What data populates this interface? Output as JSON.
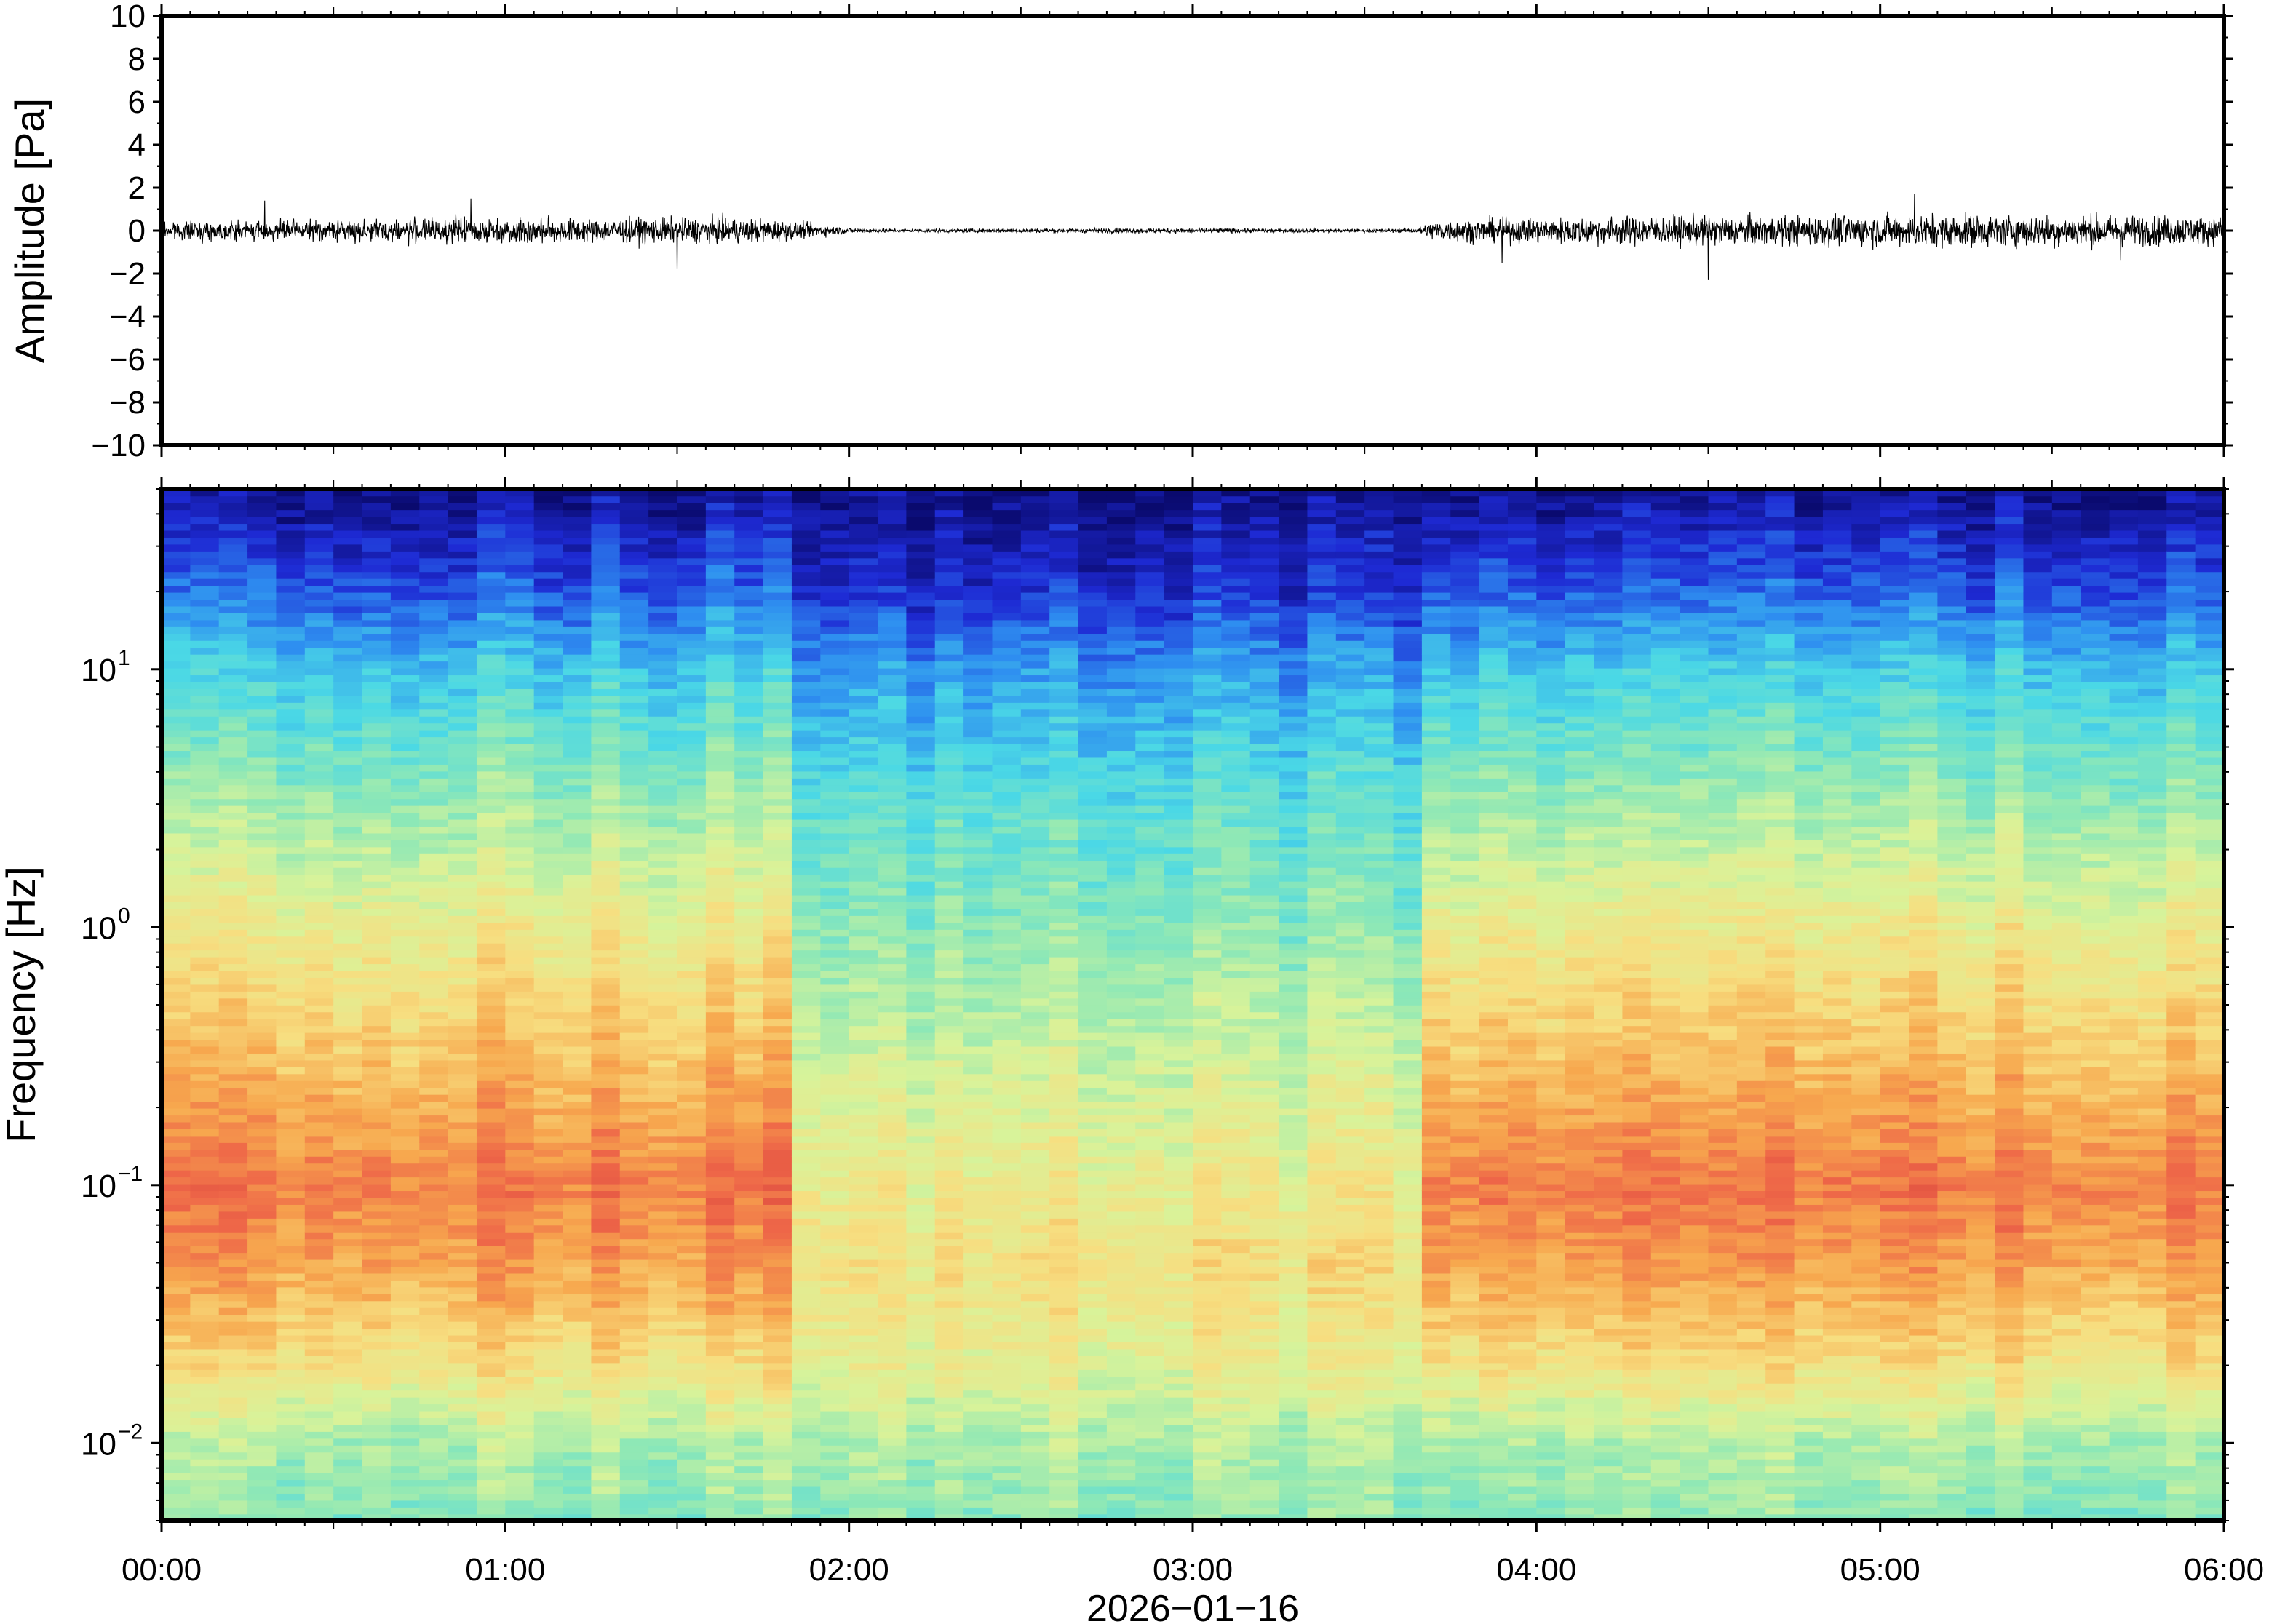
{
  "chart_data": [
    {
      "type": "line",
      "panel": "waveform",
      "ylabel": "Amplitude [Pa]",
      "ylim": [
        -10,
        10
      ],
      "y_ticks": [
        10,
        8,
        6,
        4,
        2,
        0,
        -2,
        -4,
        -6,
        -8,
        -10
      ],
      "y_tick_labels": [
        "10",
        "8",
        "6",
        "4",
        "2",
        "0",
        "−2",
        "−4",
        "−6",
        "−8",
        "−10"
      ],
      "xlim_hours": [
        0,
        6
      ],
      "series": [
        {
          "x_hours": [
            0.0,
            0.25,
            0.5,
            0.75,
            1.0,
            1.25,
            1.5,
            1.75,
            1.9,
            2.0,
            2.25,
            2.5,
            2.75,
            3.0,
            3.25,
            3.5,
            3.65,
            3.7,
            3.9,
            4.15,
            4.4,
            4.65,
            4.9,
            5.15,
            5.4,
            5.65,
            5.9,
            6.0
          ],
          "envelope_pa": [
            0.5,
            0.55,
            0.6,
            0.7,
            0.75,
            0.7,
            0.75,
            0.7,
            0.4,
            0.15,
            0.1,
            0.12,
            0.15,
            0.15,
            0.12,
            0.1,
            0.12,
            0.6,
            0.7,
            0.8,
            0.85,
            0.85,
            0.9,
            0.95,
            0.9,
            0.95,
            0.85,
            0.8
          ],
          "peaks_pa": [
            1.4,
            1.5,
            -1.8,
            1.3,
            -1.3,
            1.6,
            -1.5,
            -2.3,
            1.7,
            -1.4
          ]
        }
      ],
      "grid": false
    },
    {
      "type": "heatmap",
      "panel": "spectrogram",
      "ylabel": "Frequency [Hz]",
      "y_scale": "log",
      "ylim_hz": [
        0.005,
        50
      ],
      "y_ticks_hz": [
        0.01,
        0.1,
        1,
        10
      ],
      "y_tick_labels": [
        {
          "base": "10",
          "exp": "−2"
        },
        {
          "base": "10",
          "exp": "−1"
        },
        {
          "base": "10",
          "exp": "0"
        },
        {
          "base": "10",
          "exp": "1"
        }
      ],
      "colormap": "jet",
      "colormap_stops": [
        "#0a0a6e",
        "#1e2ad4",
        "#2e8ef0",
        "#4ad8e6",
        "#8ee8b6",
        "#d8f39a",
        "#f7de80",
        "#f7a84e",
        "#ee6648",
        "#d23a3a"
      ],
      "time_bin_minutes": 5,
      "quiet_interval_hours": [
        1.88,
        3.63
      ],
      "relative_power_profile": {
        "freq_hz": [
          0.005,
          0.01,
          0.02,
          0.05,
          0.1,
          0.3,
          1,
          3,
          10,
          20,
          50
        ],
        "active": [
          0.45,
          0.5,
          0.66,
          0.8,
          0.86,
          0.74,
          0.62,
          0.48,
          0.32,
          0.18,
          0.04
        ],
        "quiet": [
          0.45,
          0.5,
          0.6,
          0.66,
          0.62,
          0.55,
          0.45,
          0.38,
          0.25,
          0.12,
          0.03
        ]
      },
      "x_ticks_hours": [
        0,
        1,
        2,
        3,
        4,
        5,
        6
      ],
      "x_tick_labels": [
        "00:00",
        "01:00",
        "02:00",
        "03:00",
        "04:00",
        "05:00",
        "06:00"
      ],
      "xlabel": "2026−01−16",
      "grid": false
    }
  ]
}
